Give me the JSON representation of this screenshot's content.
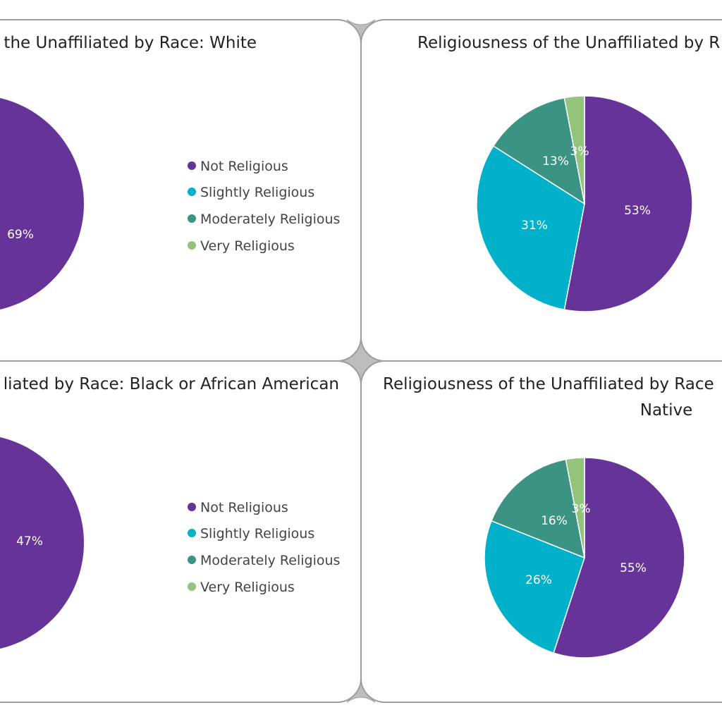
{
  "colors": {
    "not_religious": "#663399",
    "slightly_religious": "#00b1c9",
    "moderately_religious": "#3a9383",
    "very_religious": "#92c47c",
    "panel_border": "#9e9e9e",
    "connector_fill": "#bdbdbd"
  },
  "chart_data": [
    {
      "type": "pie",
      "title": "the Unaffiliated by Race: White",
      "categories": [
        "Not Religious",
        "Slightly Religious",
        "Moderately Religious",
        "Very Religious"
      ],
      "values": [
        69,
        null,
        null,
        null
      ],
      "data_labels": [
        "69%"
      ],
      "legend": [
        "Not Religious",
        "Slightly Religious",
        "Moderately Religious",
        "Very Religious"
      ],
      "legend_position": "right"
    },
    {
      "type": "pie",
      "title": "Religiousness of the Unaffiliated by R",
      "categories": [
        "Not Religious",
        "Slightly Religious",
        "Moderately Religious",
        "Very Religious"
      ],
      "values": [
        53,
        31,
        13,
        3
      ],
      "data_labels": [
        "53%",
        "31%",
        "13%",
        "3%"
      ]
    },
    {
      "type": "pie",
      "title": "liated by Race: Black or African American",
      "categories": [
        "Not Religious",
        "Slightly Religious",
        "Moderately Religious",
        "Very Religious"
      ],
      "values": [
        47,
        null,
        null,
        null
      ],
      "data_labels": [
        "47%"
      ],
      "legend": [
        "Not Religious",
        "Slightly Religious",
        "Moderately Religious",
        "Very Religious"
      ],
      "legend_position": "right"
    },
    {
      "type": "pie",
      "title": "Religiousness of the Unaffiliated by Race",
      "title_line2": "Native",
      "categories": [
        "Not Religious",
        "Slightly Religious",
        "Moderately Religious",
        "Very Religious"
      ],
      "values": [
        55,
        26,
        16,
        3
      ],
      "data_labels": [
        "55%",
        "26%",
        "16%",
        "3%"
      ]
    }
  ]
}
